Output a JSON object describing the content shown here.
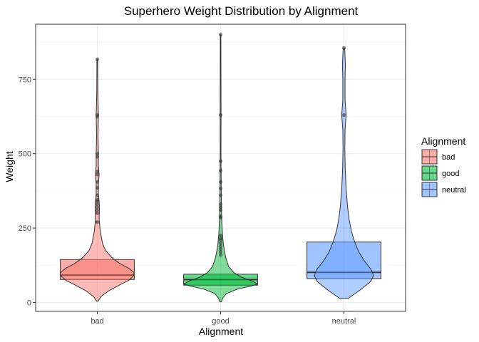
{
  "chart_data": {
    "type": "violin+box",
    "title": "Superhero Weight Distribution by Alignment",
    "xlabel": "Alignment",
    "ylabel": "Weight",
    "categories": [
      "bad",
      "good",
      "neutral"
    ],
    "ylim": [
      -30,
      935
    ],
    "yticks": [
      0,
      250,
      500,
      750
    ],
    "grid": true,
    "legend": {
      "title": "Alignment",
      "position": "right",
      "entries": [
        "bad",
        "good",
        "neutral"
      ]
    },
    "colors": {
      "bad": "#F8766D",
      "good": "#00BA38",
      "neutral": "#619CFF"
    },
    "boxes": [
      {
        "category": "bad",
        "q1": 77,
        "median": 92,
        "q3": 144
      },
      {
        "category": "good",
        "q1": 58,
        "median": 77,
        "q3": 95
      },
      {
        "category": "neutral",
        "q1": 80,
        "median": 101,
        "q3": 203
      }
    ],
    "violins": [
      {
        "category": "bad",
        "min": 4,
        "max": 817,
        "density": [
          [
            4,
            0.02
          ],
          [
            20,
            0.1
          ],
          [
            40,
            0.32
          ],
          [
            60,
            0.62
          ],
          [
            75,
            0.86
          ],
          [
            90,
            0.98
          ],
          [
            100,
            1.0
          ],
          [
            115,
            0.85
          ],
          [
            130,
            0.62
          ],
          [
            150,
            0.4
          ],
          [
            175,
            0.22
          ],
          [
            200,
            0.14
          ],
          [
            240,
            0.08
          ],
          [
            280,
            0.05
          ],
          [
            320,
            0.06
          ],
          [
            340,
            0.05
          ],
          [
            360,
            0.03
          ],
          [
            400,
            0.03
          ],
          [
            430,
            0.05
          ],
          [
            460,
            0.03
          ],
          [
            500,
            0.03
          ],
          [
            560,
            0.02
          ],
          [
            630,
            0.03
          ],
          [
            700,
            0.015
          ],
          [
            817,
            0.01
          ]
        ]
      },
      {
        "category": "good",
        "min": 2,
        "max": 900,
        "density": [
          [
            2,
            0.02
          ],
          [
            15,
            0.06
          ],
          [
            30,
            0.16
          ],
          [
            45,
            0.46
          ],
          [
            55,
            0.82
          ],
          [
            62,
            1.0
          ],
          [
            72,
            0.85
          ],
          [
            85,
            0.56
          ],
          [
            100,
            0.36
          ],
          [
            120,
            0.22
          ],
          [
            150,
            0.14
          ],
          [
            175,
            0.1
          ],
          [
            200,
            0.07
          ],
          [
            230,
            0.05
          ],
          [
            280,
            0.03
          ],
          [
            330,
            0.02
          ],
          [
            400,
            0.015
          ],
          [
            500,
            0.01
          ],
          [
            630,
            0.012
          ],
          [
            900,
            0.008
          ]
        ]
      },
      {
        "category": "neutral",
        "min": 14,
        "max": 855,
        "density": [
          [
            14,
            0.12
          ],
          [
            40,
            0.42
          ],
          [
            70,
            0.72
          ],
          [
            90,
            0.8
          ],
          [
            110,
            0.74
          ],
          [
            140,
            0.55
          ],
          [
            170,
            0.4
          ],
          [
            200,
            0.3
          ],
          [
            240,
            0.2
          ],
          [
            280,
            0.14
          ],
          [
            320,
            0.1
          ],
          [
            380,
            0.06
          ],
          [
            450,
            0.035
          ],
          [
            520,
            0.025
          ],
          [
            580,
            0.03
          ],
          [
            630,
            0.06
          ],
          [
            680,
            0.03
          ],
          [
            750,
            0.03
          ],
          [
            800,
            0.04
          ],
          [
            855,
            0.02
          ]
        ]
      }
    ],
    "outliers": [
      {
        "category": "bad",
        "values": [
          817,
          630,
          625,
          500,
          490,
          440,
          430,
          405,
          385,
          360,
          345,
          340,
          330,
          320,
          310,
          300,
          270
        ]
      },
      {
        "category": "good",
        "values": [
          900,
          630,
          475,
          443,
          405,
          383,
          360,
          330,
          320,
          310,
          290,
          285,
          225,
          215,
          210,
          200,
          190,
          180,
          170,
          160
        ]
      },
      {
        "category": "neutral",
        "values": [
          855,
          630
        ]
      }
    ]
  }
}
